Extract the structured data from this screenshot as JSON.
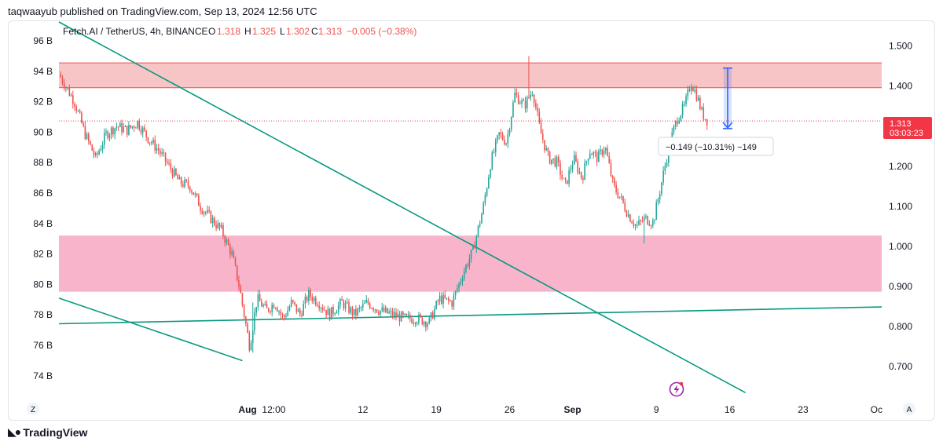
{
  "publish_line": "taqwaayub published on TradingView.com, Sep 13, 2024 12:56 UTC",
  "footer": {
    "brand": "TradingView",
    "brand_icon": "tradingview-logo-icon"
  },
  "colors": {
    "up": "#26a69a",
    "down": "#ef5350",
    "trendline": "#089981",
    "resistance_zone": "#f7c5c5",
    "support_zone": "#f8b4cb",
    "price_label_bg": "#f23645",
    "measure": "#2962ff"
  },
  "header": {
    "symbol": "Fetch.AI / TetherUS, 4h, BINANCE",
    "o_label": "O",
    "o_value": "1.318",
    "h_label": "H",
    "h_value": "1.325",
    "l_label": "L",
    "l_value": "1.302",
    "c_label": "C",
    "c_value": "1.313",
    "change": "−0.005 (−0.38%)"
  },
  "current_price": {
    "price": "1.313",
    "countdown": "03:03:23"
  },
  "measure_label": "−0.149 (−10.31%) −149",
  "corner_labels": {
    "left": "Z",
    "right": "A"
  },
  "alert_icon": "lightning-alert-icon",
  "chart_data": {
    "type": "candlestick",
    "title": "Fetch.AI / TetherUS, 4h, BINANCE",
    "right_axis": {
      "ticks": [
        "1.500",
        "1.400",
        "1.300",
        "1.200",
        "1.100",
        "1.000",
        "0.900",
        "0.800",
        "0.700"
      ],
      "ylim": [
        0.62,
        1.56
      ]
    },
    "left_axis": {
      "ticks": [
        "96 B",
        "94 B",
        "92 B",
        "90 B",
        "88 B",
        "86 B",
        "84 B",
        "82 B",
        "80 B",
        "78 B",
        "76 B",
        "74 B"
      ]
    },
    "x_axis": {
      "ticks": [
        "Aug",
        "12:00",
        "12",
        "19",
        "26",
        "Sep",
        "9",
        "16",
        "23",
        "Oc"
      ],
      "tick_days": [
        0,
        2.5,
        11,
        18,
        25,
        31,
        39,
        46,
        53,
        60
      ],
      "day_range": [
        -18,
        60.5
      ]
    },
    "price_path": [
      [
        -18,
        1.43
      ],
      [
        -16.5,
        1.36
      ],
      [
        -15.5,
        1.28
      ],
      [
        -14.5,
        1.22
      ],
      [
        -13.5,
        1.28
      ],
      [
        -12.5,
        1.3
      ],
      [
        -11.5,
        1.29
      ],
      [
        -10.5,
        1.31
      ],
      [
        -9.5,
        1.27
      ],
      [
        -8.5,
        1.24
      ],
      [
        -7.5,
        1.2
      ],
      [
        -6.5,
        1.16
      ],
      [
        -5.5,
        1.15
      ],
      [
        -4.5,
        1.1
      ],
      [
        -3.5,
        1.07
      ],
      [
        -2.5,
        1.04
      ],
      [
        -1.5,
        0.98
      ],
      [
        -0.8,
        0.9
      ],
      [
        0.2,
        0.75
      ],
      [
        0.9,
        0.87
      ],
      [
        1.8,
        0.84
      ],
      [
        2.6,
        0.86
      ],
      [
        3.4,
        0.82
      ],
      [
        4.2,
        0.86
      ],
      [
        5,
        0.83
      ],
      [
        5.8,
        0.88
      ],
      [
        6.8,
        0.86
      ],
      [
        7.8,
        0.83
      ],
      [
        9,
        0.86
      ],
      [
        10.2,
        0.83
      ],
      [
        11.4,
        0.86
      ],
      [
        12.6,
        0.84
      ],
      [
        13.8,
        0.83
      ],
      [
        15,
        0.82
      ],
      [
        16.2,
        0.82
      ],
      [
        17.3,
        0.81
      ],
      [
        18.3,
        0.87
      ],
      [
        19.5,
        0.86
      ],
      [
        20.5,
        0.93
      ],
      [
        21.5,
        0.99
      ],
      [
        22.5,
        1.1
      ],
      [
        23.2,
        1.21
      ],
      [
        24,
        1.28
      ],
      [
        24.7,
        1.26
      ],
      [
        25.5,
        1.38
      ],
      [
        26.4,
        1.35
      ],
      [
        27.2,
        1.39
      ],
      [
        27.9,
        1.29
      ],
      [
        28.7,
        1.22
      ],
      [
        29.5,
        1.21
      ],
      [
        30.3,
        1.15
      ],
      [
        31.1,
        1.22
      ],
      [
        31.9,
        1.17
      ],
      [
        32.6,
        1.24
      ],
      [
        33.4,
        1.22
      ],
      [
        34.1,
        1.25
      ],
      [
        34.9,
        1.15
      ],
      [
        35.6,
        1.12
      ],
      [
        36.3,
        1.08
      ],
      [
        37.1,
        1.05
      ],
      [
        37.9,
        1.07
      ],
      [
        38.7,
        1.06
      ],
      [
        39.5,
        1.16
      ],
      [
        40.3,
        1.26
      ],
      [
        41,
        1.32
      ],
      [
        41.7,
        1.35
      ],
      [
        42.3,
        1.41
      ],
      [
        42.8,
        1.38
      ],
      [
        43.4,
        1.33
      ],
      [
        43.9,
        1.313
      ]
    ],
    "zones": [
      {
        "name": "resistance",
        "range": [
          1.396,
          1.458
        ],
        "color": "#f7c5c5"
      },
      {
        "name": "support",
        "range": [
          0.887,
          1.027
        ],
        "color": "#f8b4cb"
      }
    ],
    "trendlines": [
      {
        "from": [
          -18,
          1.56
        ],
        "to": [
          47.5,
          0.635
        ]
      },
      {
        "from": [
          -18,
          0.871
        ],
        "to": [
          -0.5,
          0.715
        ]
      },
      {
        "from": [
          -18,
          0.807
        ],
        "to": [
          60.5,
          0.849
        ]
      }
    ],
    "measure": {
      "from_price": 1.445,
      "to_price": 1.296,
      "day": 45.8,
      "label": "−0.149 (−10.31%) −149"
    },
    "current_price": 1.313,
    "spikes": [
      {
        "day": 26.8,
        "high": 1.475,
        "low": 1.38
      },
      {
        "day": 37.9,
        "high": 1.07,
        "low": 1.007
      },
      {
        "day": 0.5,
        "high": 0.86,
        "low": 0.735
      }
    ]
  }
}
